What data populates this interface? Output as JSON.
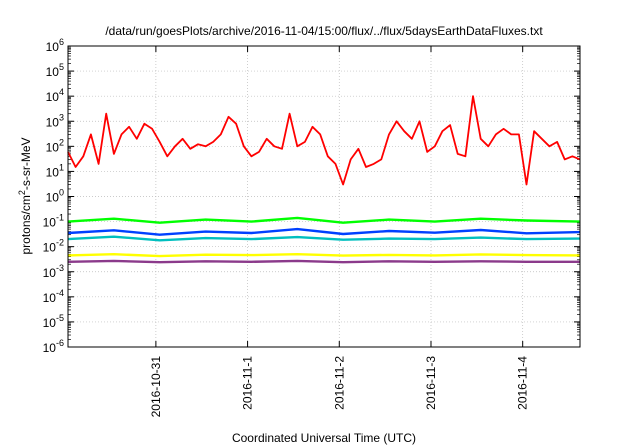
{
  "chart_data": {
    "type": "line",
    "title": "/data/run/goesPlots/archive/2016-11-04/15:00/flux/../flux/5daysEarthDataFluxes.txt",
    "xlabel": "Coordinated Universal Time (UTC)",
    "ylabel_parts": [
      "protons/cm",
      "2",
      "-s-sr-MeV"
    ],
    "x_axis": {
      "type": "date",
      "range": [
        "2016-10-30T01:00",
        "2016-11-04T15:00"
      ],
      "ticks": [
        "2016-10-31",
        "2016-11-1",
        "2016-11-2",
        "2016-11-3",
        "2016-11-4"
      ],
      "tick_dates": [
        "2016-10-31T00:00",
        "2016-11-01T00:00",
        "2016-11-02T00:00",
        "2016-11-03T00:00",
        "2016-11-04T00:00"
      ]
    },
    "y_axis": {
      "scale": "log",
      "range": [
        1e-06,
        1000000.0
      ],
      "ticks": [
        {
          "base": "10",
          "exp": "-6"
        },
        {
          "base": "10",
          "exp": "-5"
        },
        {
          "base": "10",
          "exp": "-4"
        },
        {
          "base": "10",
          "exp": "-3"
        },
        {
          "base": "10",
          "exp": "-2"
        },
        {
          "base": "10",
          "exp": "-1"
        },
        {
          "base": "10",
          "exp": "0"
        },
        {
          "base": "10",
          "exp": "1"
        },
        {
          "base": "10",
          "exp": "2"
        },
        {
          "base": "10",
          "exp": "3"
        },
        {
          "base": "10",
          "exp": "4"
        },
        {
          "base": "10",
          "exp": "5"
        },
        {
          "base": "10",
          "exp": "6"
        }
      ]
    },
    "grid": true,
    "legend": "none",
    "series": [
      {
        "color": "#ff0000",
        "x": [
          "2016-10-30T01:00",
          "2016-10-30T03:00",
          "2016-10-30T05:00",
          "2016-10-30T07:00",
          "2016-10-30T09:00",
          "2016-10-30T11:00",
          "2016-10-30T13:00",
          "2016-10-30T15:00",
          "2016-10-30T17:00",
          "2016-10-30T19:00",
          "2016-10-30T21:00",
          "2016-10-30T23:00",
          "2016-10-31T01:00",
          "2016-10-31T03:00",
          "2016-10-31T05:00",
          "2016-10-31T07:00",
          "2016-10-31T09:00",
          "2016-10-31T11:00",
          "2016-10-31T13:00",
          "2016-10-31T15:00",
          "2016-10-31T17:00",
          "2016-10-31T19:00",
          "2016-10-31T21:00",
          "2016-10-31T23:00",
          "2016-11-01T01:00",
          "2016-11-01T03:00",
          "2016-11-01T05:00",
          "2016-11-01T07:00",
          "2016-11-01T09:00",
          "2016-11-01T11:00",
          "2016-11-01T13:00",
          "2016-11-01T15:00",
          "2016-11-01T17:00",
          "2016-11-01T19:00",
          "2016-11-01T21:00",
          "2016-11-01T23:00",
          "2016-11-02T01:00",
          "2016-11-02T03:00",
          "2016-11-02T05:00",
          "2016-11-02T07:00",
          "2016-11-02T09:00",
          "2016-11-02T11:00",
          "2016-11-02T13:00",
          "2016-11-02T15:00",
          "2016-11-02T17:00",
          "2016-11-02T19:00",
          "2016-11-02T21:00",
          "2016-11-02T23:00",
          "2016-11-03T01:00",
          "2016-11-03T03:00",
          "2016-11-03T05:00",
          "2016-11-03T07:00",
          "2016-11-03T09:00",
          "2016-11-03T11:00",
          "2016-11-03T13:00",
          "2016-11-03T15:00",
          "2016-11-03T17:00",
          "2016-11-03T19:00",
          "2016-11-03T21:00",
          "2016-11-03T23:00",
          "2016-11-04T01:00",
          "2016-11-04T03:00",
          "2016-11-04T05:00",
          "2016-11-04T07:00",
          "2016-11-04T09:00",
          "2016-11-04T11:00",
          "2016-11-04T13:00",
          "2016-11-04T15:00"
        ],
        "values": [
          60,
          15,
          40,
          300,
          20,
          2000,
          50,
          300,
          600,
          200,
          800,
          500,
          150,
          40,
          100,
          200,
          80,
          120,
          100,
          150,
          300,
          1500,
          800,
          100,
          40,
          60,
          200,
          100,
          80,
          2000,
          100,
          150,
          600,
          300,
          40,
          20,
          3,
          30,
          80,
          15,
          20,
          30,
          300,
          1000,
          400,
          200,
          1000,
          60,
          100,
          400,
          700,
          50,
          40,
          10000,
          200,
          100,
          300,
          500,
          300,
          300,
          3,
          400,
          200,
          100,
          150,
          30,
          40,
          30
        ]
      },
      {
        "color": "#00ff00",
        "x": [
          "2016-10-30T01:00",
          "2016-10-30T13:00",
          "2016-10-31T01:00",
          "2016-10-31T13:00",
          "2016-11-01T01:00",
          "2016-11-01T13:00",
          "2016-11-02T01:00",
          "2016-11-02T13:00",
          "2016-11-03T01:00",
          "2016-11-03T13:00",
          "2016-11-04T01:00",
          "2016-11-04T15:00"
        ],
        "values": [
          0.1,
          0.13,
          0.09,
          0.12,
          0.1,
          0.14,
          0.09,
          0.12,
          0.1,
          0.13,
          0.11,
          0.1
        ]
      },
      {
        "color": "#00bfbf",
        "x": [
          "2016-10-30T01:00",
          "2016-10-30T13:00",
          "2016-10-31T01:00",
          "2016-10-31T13:00",
          "2016-11-01T01:00",
          "2016-11-01T13:00",
          "2016-11-02T01:00",
          "2016-11-02T13:00",
          "2016-11-03T01:00",
          "2016-11-03T13:00",
          "2016-11-04T01:00",
          "2016-11-04T15:00"
        ],
        "values": [
          0.02,
          0.025,
          0.018,
          0.022,
          0.02,
          0.024,
          0.019,
          0.021,
          0.02,
          0.023,
          0.02,
          0.021
        ]
      },
      {
        "color": "#0040ff",
        "x": [
          "2016-10-30T01:00",
          "2016-10-30T13:00",
          "2016-10-31T01:00",
          "2016-10-31T13:00",
          "2016-11-01T01:00",
          "2016-11-01T13:00",
          "2016-11-02T01:00",
          "2016-11-02T13:00",
          "2016-11-03T01:00",
          "2016-11-03T13:00",
          "2016-11-04T01:00",
          "2016-11-04T15:00"
        ],
        "values": [
          0.035,
          0.045,
          0.03,
          0.04,
          0.035,
          0.05,
          0.032,
          0.042,
          0.036,
          0.046,
          0.034,
          0.038
        ]
      },
      {
        "color": "#ffff00",
        "x": [
          "2016-10-30T01:00",
          "2016-10-30T13:00",
          "2016-10-31T01:00",
          "2016-10-31T13:00",
          "2016-11-01T01:00",
          "2016-11-01T13:00",
          "2016-11-02T01:00",
          "2016-11-02T13:00",
          "2016-11-03T01:00",
          "2016-11-03T13:00",
          "2016-11-04T01:00",
          "2016-11-04T15:00"
        ],
        "values": [
          0.0045,
          0.005,
          0.0042,
          0.0048,
          0.0046,
          0.005,
          0.0044,
          0.0047,
          0.0045,
          0.0049,
          0.0046,
          0.0045
        ]
      },
      {
        "color": "#8b3a8b",
        "x": [
          "2016-10-30T01:00",
          "2016-10-30T13:00",
          "2016-10-31T01:00",
          "2016-10-31T13:00",
          "2016-11-01T01:00",
          "2016-11-01T13:00",
          "2016-11-02T01:00",
          "2016-11-02T13:00",
          "2016-11-03T01:00",
          "2016-11-03T13:00",
          "2016-11-04T01:00",
          "2016-11-04T15:00"
        ],
        "values": [
          0.0025,
          0.0027,
          0.0024,
          0.0026,
          0.0025,
          0.0027,
          0.0024,
          0.0026,
          0.0025,
          0.0026,
          0.0025,
          0.0025
        ]
      }
    ]
  }
}
